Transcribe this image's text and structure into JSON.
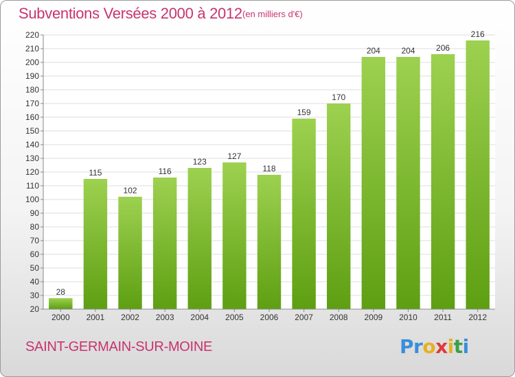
{
  "header": {
    "title": "Subventions Versées 2000 à 2012",
    "unit": "(en milliers d'€)"
  },
  "footer": {
    "commune": "SAINT-GERMAIN-SUR-MOINE",
    "logo_letters": [
      "P",
      "r",
      "o",
      "x",
      "i",
      "t",
      "i"
    ]
  },
  "colors": {
    "title": "#c8336e",
    "bar_top": "#9dd150",
    "bar_bottom": "#5e9f12",
    "logo": [
      "#3a8fd9",
      "#3a8fd9",
      "#e8b020",
      "#e03a3a",
      "#e8b020",
      "#3aa04a",
      "#3a8fd9"
    ]
  },
  "chart_data": {
    "type": "bar",
    "categories": [
      "2000",
      "2001",
      "2002",
      "2003",
      "2004",
      "2005",
      "2006",
      "2007",
      "2008",
      "2009",
      "2010",
      "2011",
      "2012"
    ],
    "values": [
      28,
      115,
      102,
      116,
      123,
      127,
      118,
      159,
      170,
      204,
      204,
      206,
      216
    ],
    "ylim": [
      20,
      220
    ],
    "yticks": [
      20,
      30,
      40,
      50,
      60,
      70,
      80,
      90,
      100,
      110,
      120,
      130,
      140,
      150,
      160,
      170,
      180,
      190,
      200,
      210,
      220
    ],
    "grid": true,
    "data_labels": true
  }
}
